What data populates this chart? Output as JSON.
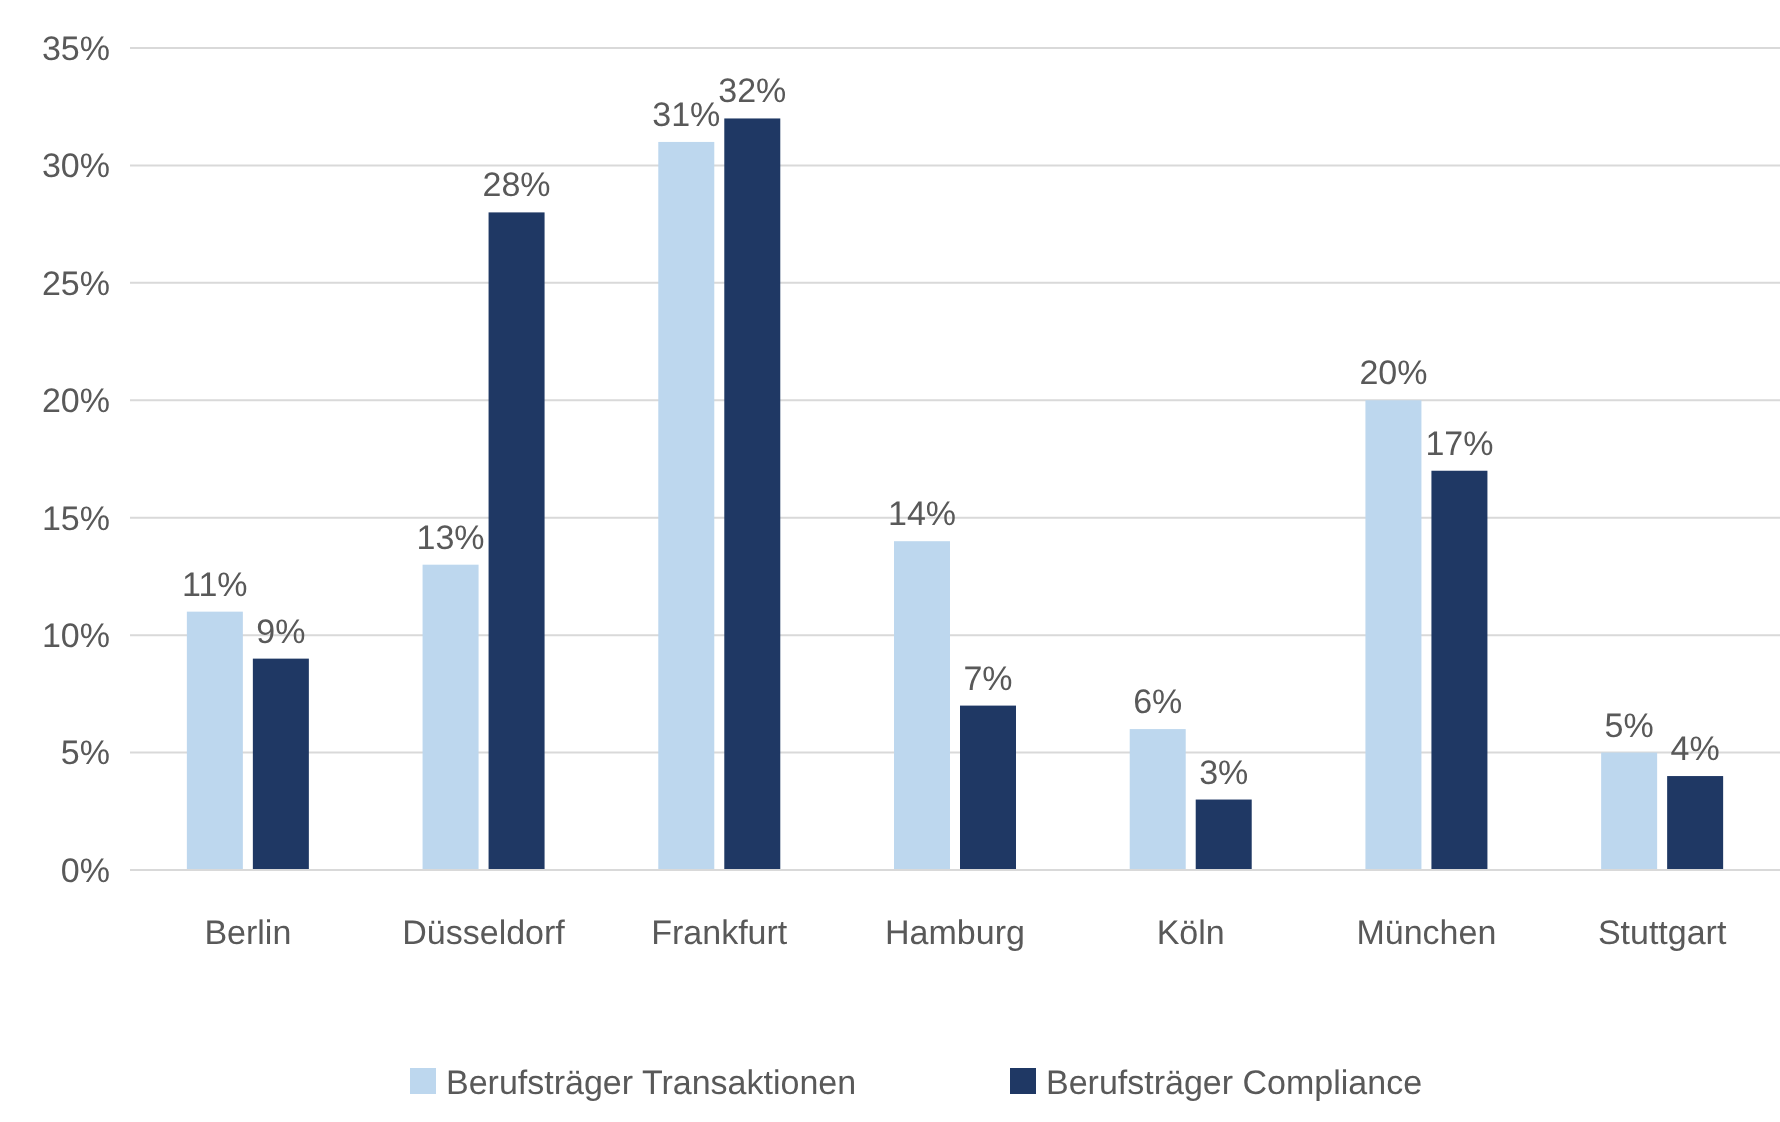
{
  "chart_data": {
    "type": "bar",
    "categories": [
      "Berlin",
      "Düsseldorf",
      "Frankfurt",
      "Hamburg",
      "Köln",
      "München",
      "Stuttgart"
    ],
    "series": [
      {
        "name": "Berufsträger Transaktionen",
        "color": "#bdd7ee",
        "values": [
          11,
          13,
          31,
          14,
          6,
          20,
          5
        ],
        "value_labels": [
          "11%",
          "13%",
          "31%",
          "14%",
          "6%",
          "20%",
          "5%"
        ]
      },
      {
        "name": "Berufsträger Compliance",
        "color": "#1f3864",
        "values": [
          9,
          28,
          32,
          7,
          3,
          17,
          4
        ],
        "value_labels": [
          "9%",
          "28%",
          "32%",
          "7%",
          "3%",
          "17%",
          "4%"
        ]
      }
    ],
    "ylim": [
      0,
      35
    ],
    "yticks": [
      {
        "value": 0,
        "label": "0%"
      },
      {
        "value": 5,
        "label": "5%"
      },
      {
        "value": 10,
        "label": "10%"
      },
      {
        "value": 15,
        "label": "15%"
      },
      {
        "value": 20,
        "label": "20%"
      },
      {
        "value": 25,
        "label": "25%"
      },
      {
        "value": 30,
        "label": "30%"
      },
      {
        "value": 35,
        "label": "35%"
      }
    ],
    "grid": "y",
    "legend": "bottom"
  }
}
